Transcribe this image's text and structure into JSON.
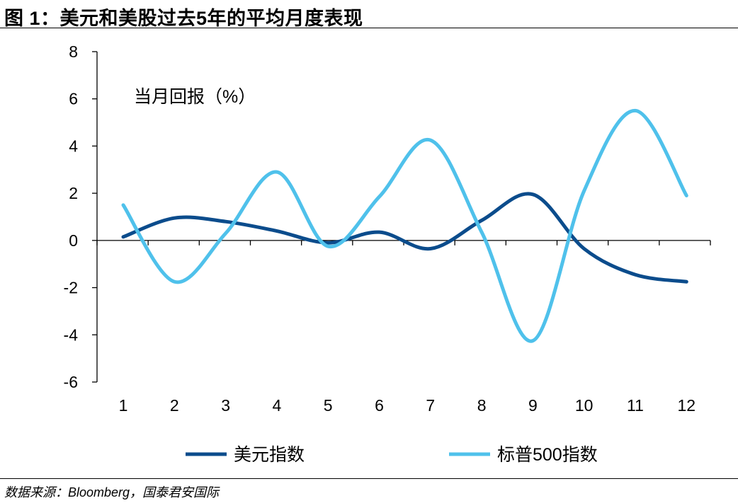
{
  "figure": {
    "title": "图 1：美元和美股过去5年的平均月度表现",
    "source": "数据来源：Bloomberg，国泰君安国际"
  },
  "chart_data": {
    "type": "line",
    "annotation": "当月回报（%）",
    "categories": [
      "1",
      "2",
      "3",
      "4",
      "5",
      "6",
      "7",
      "8",
      "9",
      "10",
      "11",
      "12"
    ],
    "ylim": [
      -6,
      8
    ],
    "yticks": [
      8,
      6,
      4,
      2,
      0,
      -2,
      -4,
      -6
    ],
    "grid": false,
    "legend_position": "bottom",
    "series": [
      {
        "name": "美元指数",
        "color": "#0B4C8C",
        "values": [
          0.15,
          0.95,
          0.8,
          0.4,
          -0.1,
          0.35,
          -0.35,
          0.85,
          1.95,
          -0.35,
          -1.45,
          -1.75
        ]
      },
      {
        "name": "标普500指数",
        "color": "#4FC1EB",
        "values": [
          1.5,
          -1.75,
          0.3,
          2.9,
          -0.25,
          1.85,
          4.25,
          0.35,
          -4.25,
          2.1,
          5.5,
          1.9
        ]
      }
    ]
  }
}
